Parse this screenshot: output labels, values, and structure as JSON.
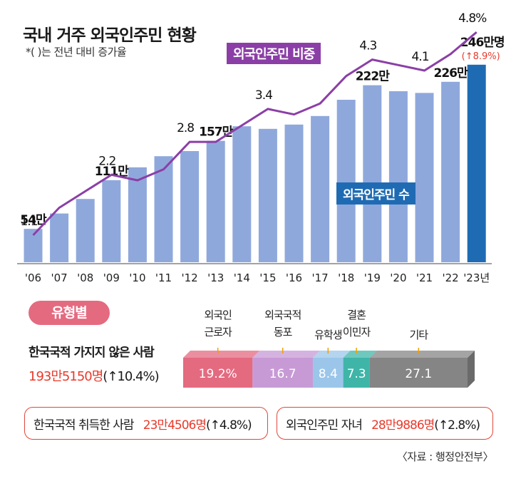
{
  "header": {
    "title": "국내 거주 외국인주민 현황",
    "note": "*( )는 전년 대비 증가율"
  },
  "legend": {
    "ratio_label": "외국인주민 비중",
    "count_label": "외국인주민 수"
  },
  "chart_data": {
    "type": "bar",
    "categories": [
      "'06",
      "'07",
      "'08",
      "'09",
      "'10",
      "'11",
      "'12",
      "'13",
      "'14",
      "'15",
      "'16",
      "'17",
      "'18",
      "'19",
      "'20",
      "'21",
      "'22",
      "'23년"
    ],
    "series": [
      {
        "name": "외국인주민 수",
        "unit": "만명",
        "values": [
          54,
          72,
          89,
          111,
          126,
          139,
          145,
          157,
          174,
          171,
          176,
          186,
          205,
          222,
          215,
          213,
          226,
          246
        ],
        "labels": {
          "0": "54만",
          "3": "111만",
          "7": "157만",
          "13": "222만",
          "16": "226만",
          "17": "246만명"
        },
        "color": "#8fa8dc",
        "highlight_color": "#1f6bb3",
        "highlight_sub": "(↑8.9%)"
      },
      {
        "name": "외국인주민 비중",
        "unit": "%",
        "values": [
          1.1,
          1.6,
          1.9,
          2.2,
          2.1,
          2.3,
          2.8,
          2.8,
          3.1,
          3.4,
          3.3,
          3.5,
          4.0,
          4.3,
          4.2,
          4.1,
          4.4,
          4.8
        ],
        "labels": {
          "0": "1.1",
          "3": "2.2",
          "6": "2.8",
          "9": "3.4",
          "13": "4.3",
          "15": "4.1",
          "17": "4.8%"
        },
        "color": "#8b3fa6"
      }
    ]
  },
  "type_chart": {
    "pill": "유형별",
    "segments": [
      {
        "name_line1": "외국인",
        "name_line2": "근로자",
        "value": 19.2,
        "label": "19.2%",
        "color": "#e46a80"
      },
      {
        "name_line1": "외국국적",
        "name_line2": "동포",
        "value": 16.7,
        "label": "16.7",
        "color": "#c79ad6"
      },
      {
        "name_line1": "유학생",
        "name_line2": "",
        "value": 8.4,
        "label": "8.4",
        "color": "#9bc6ea"
      },
      {
        "name_line1": "결혼",
        "name_line2": "이민자",
        "value": 7.3,
        "label": "7.3",
        "color": "#3fb5a8"
      },
      {
        "name_line1": "기타",
        "name_line2": "",
        "value": 27.1,
        "label": "27.1",
        "color": "#858585"
      }
    ]
  },
  "groups": {
    "non_national_label": "한국국적 가지지 않은 사람",
    "non_national_value": "193만5150명",
    "non_national_rate": "(↑10.4%)",
    "naturalized_label": "한국국적 취득한 사람",
    "naturalized_value": "23만4506명",
    "naturalized_rate": "(↑4.8%)",
    "children_label": "외국인주민 자녀",
    "children_value": "28만9886명",
    "children_rate": "(↑2.8%)"
  },
  "source": "〈자료 : 행정안전부〉"
}
